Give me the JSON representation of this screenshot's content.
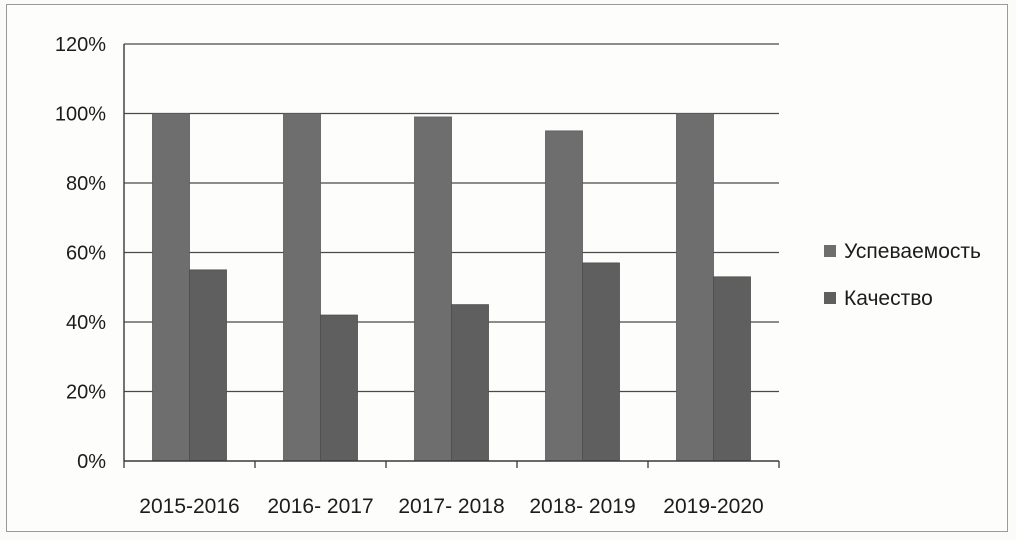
{
  "chart_data": {
    "type": "bar",
    "title": "",
    "xlabel": "",
    "ylabel": "",
    "categories": [
      "2015-2016",
      "2016- 2017",
      "2017- 2018",
      "2018- 2019",
      "2019-2020"
    ],
    "series": [
      {
        "name": "Успеваемость",
        "values": [
          100,
          100,
          99,
          95,
          100
        ],
        "color": "#6b6b6b"
      },
      {
        "name": "Качество",
        "values": [
          55,
          42,
          45,
          57,
          53
        ],
        "color": "#5d5d5d"
      }
    ],
    "ylim": [
      0,
      120
    ],
    "yticks": [
      "0%",
      "20%",
      "40%",
      "60%",
      "80%",
      "100%",
      "120%"
    ],
    "ytick_values": [
      0,
      20,
      40,
      60,
      80,
      100,
      120
    ],
    "grid": true,
    "legend_position": "right"
  }
}
